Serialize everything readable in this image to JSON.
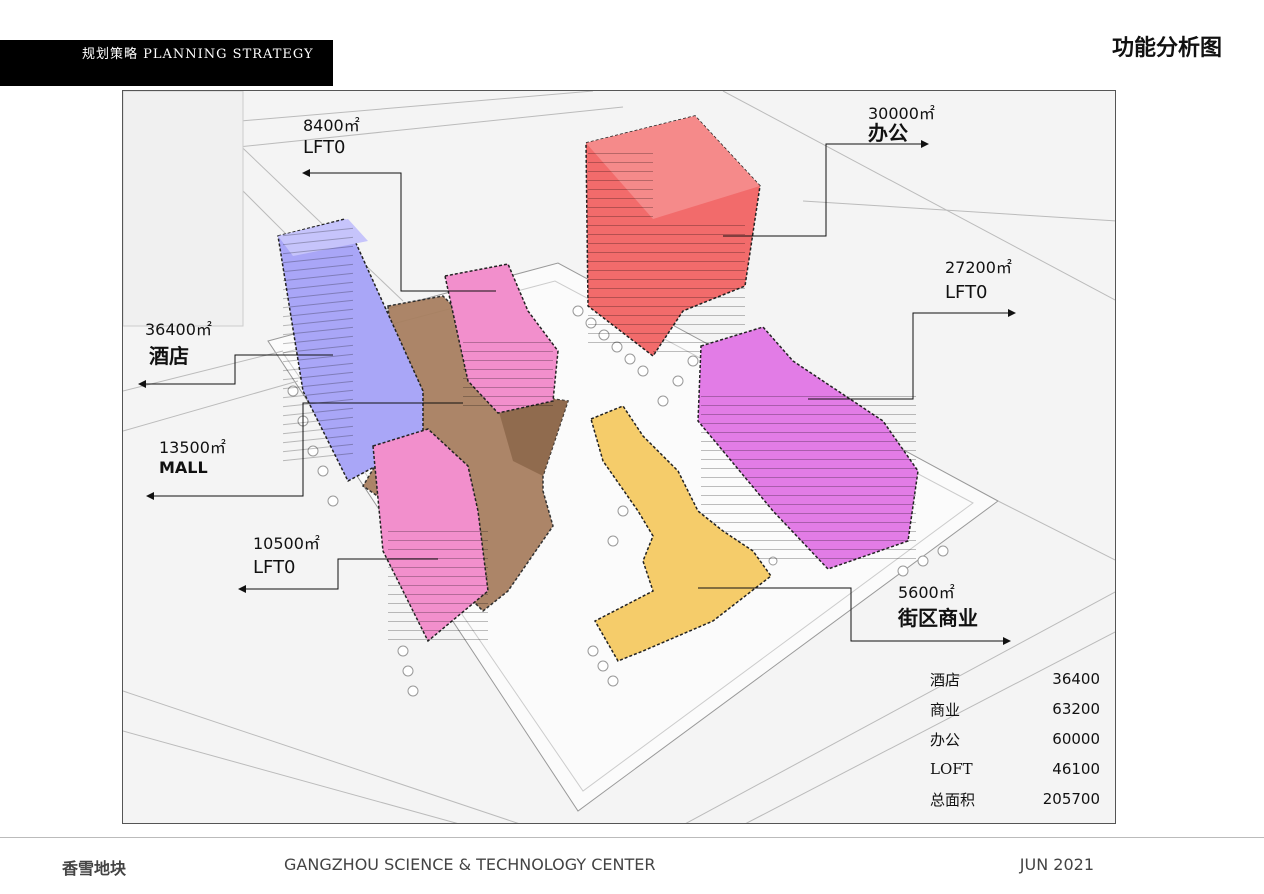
{
  "header": {
    "label": "规划策略 PLANNING STRATEGY",
    "title": "功能分析图"
  },
  "callouts": [
    {
      "area": "8400㎡",
      "name": "LFT0"
    },
    {
      "area": "30000㎡",
      "name": "办公"
    },
    {
      "area": "27200㎡",
      "name": "LFT0"
    },
    {
      "area": "36400㎡",
      "name": "酒店"
    },
    {
      "area": "13500㎡",
      "name": "MALL"
    },
    {
      "area": "10500㎡",
      "name": "LFT0"
    },
    {
      "area": "5600㎡",
      "name": "街区商业"
    }
  ],
  "area_table": [
    {
      "label": "酒店",
      "value": "36400"
    },
    {
      "label": "商业",
      "value": "63200"
    },
    {
      "label": "办公",
      "value": "60000"
    },
    {
      "label": "LOFT",
      "value": "46100"
    },
    {
      "label": "总面积",
      "value": "205700"
    }
  ],
  "footer": {
    "project": "香雪地块",
    "center": "GANGZHOU SCIENCE & TECHNOLOGY CENTER",
    "date": "JUN 2021"
  },
  "colors": {
    "office": "#f26b6b",
    "hotel": "#a9a6f7",
    "loft": "#f28fcc",
    "loft_east": "#e27ce6",
    "mall": "#a67c5c",
    "street_retail": "#f5cc6a"
  }
}
